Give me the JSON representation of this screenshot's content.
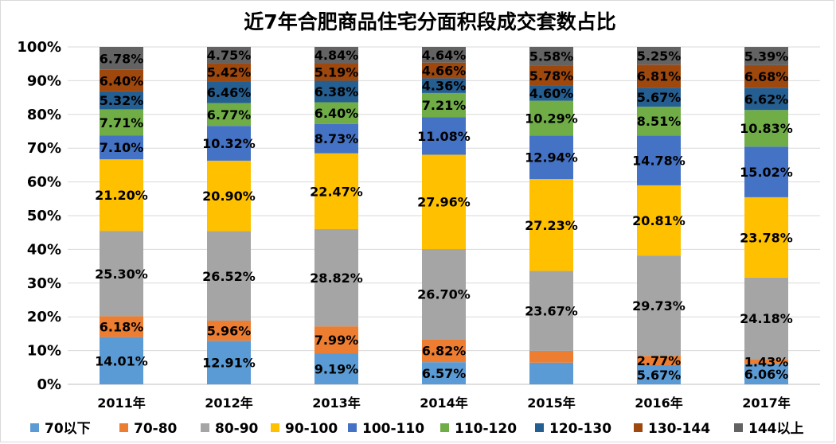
{
  "chart_data": {
    "type": "bar",
    "stacked": true,
    "title": "近7年合肥商品住宅分面积段成交套数占比",
    "categories": [
      "2011年",
      "2012年",
      "2013年",
      "2014年",
      "2015年",
      "2016年",
      "2017年"
    ],
    "ylim": [
      0,
      100
    ],
    "y_ticks": [
      "0%",
      "10%",
      "20%",
      "30%",
      "40%",
      "50%",
      "60%",
      "70%",
      "80%",
      "90%",
      "100%"
    ],
    "grid": true,
    "legend_position": "bottom",
    "series": [
      {
        "name": "70以下",
        "color": "#5b9bd5",
        "values": [
          14.01,
          12.91,
          9.19,
          6.57,
          6.43,
          5.67,
          6.06
        ],
        "labels": [
          "14.01%",
          "12.91%",
          "9.19%",
          "6.57%",
          "",
          "5.67%",
          "6.06%"
        ]
      },
      {
        "name": "70-80",
        "color": "#ed7d31",
        "values": [
          6.18,
          5.96,
          7.99,
          6.82,
          3.5,
          2.77,
          1.43
        ],
        "labels": [
          "6.18%",
          "5.96%",
          "7.99%",
          "6.82%",
          "",
          "2.77%",
          "1.43%"
        ]
      },
      {
        "name": "80-90",
        "color": "#a5a5a5",
        "values": [
          25.3,
          26.52,
          28.82,
          26.7,
          23.67,
          29.73,
          24.18
        ],
        "labels": [
          "25.30%",
          "26.52%",
          "28.82%",
          "26.70%",
          "23.67%",
          "29.73%",
          "24.18%"
        ]
      },
      {
        "name": "90-100",
        "color": "#ffc000",
        "values": [
          21.2,
          20.9,
          22.47,
          27.96,
          27.23,
          20.81,
          23.78
        ],
        "labels": [
          "21.20%",
          "20.90%",
          "22.47%",
          "27.96%",
          "27.23%",
          "20.81%",
          "23.78%"
        ]
      },
      {
        "name": "100-110",
        "color": "#4472c4",
        "values": [
          7.1,
          10.32,
          8.73,
          11.08,
          12.94,
          14.78,
          15.02
        ],
        "labels": [
          "7.10%",
          "10.32%",
          "8.73%",
          "11.08%",
          "12.94%",
          "14.78%",
          "15.02%"
        ]
      },
      {
        "name": "110-120",
        "color": "#70ad47",
        "values": [
          7.71,
          6.77,
          6.4,
          7.21,
          10.29,
          8.51,
          10.83
        ],
        "labels": [
          "7.71%",
          "6.77%",
          "6.40%",
          "7.21%",
          "10.29%",
          "8.51%",
          "10.83%"
        ]
      },
      {
        "name": "120-130",
        "color": "#255e91",
        "values": [
          5.32,
          6.46,
          6.38,
          4.36,
          4.6,
          5.67,
          6.62
        ],
        "labels": [
          "5.32%",
          "6.46%",
          "6.38%",
          "4.36%",
          "4.60%",
          "5.67%",
          "6.62%"
        ]
      },
      {
        "name": "130-144",
        "color": "#9e480e",
        "values": [
          6.4,
          5.42,
          5.19,
          4.66,
          5.78,
          6.81,
          6.68
        ],
        "labels": [
          "6.40%",
          "5.42%",
          "5.19%",
          "4.66%",
          "5.78%",
          "6.81%",
          "6.68%"
        ]
      },
      {
        "name": "144以上",
        "color": "#636363",
        "values": [
          6.78,
          4.75,
          4.84,
          4.64,
          5.58,
          5.25,
          5.39
        ],
        "labels": [
          "6.78%",
          "4.75%",
          "4.84%",
          "4.64%",
          "5.58%",
          "5.25%",
          "5.39%"
        ]
      }
    ]
  }
}
